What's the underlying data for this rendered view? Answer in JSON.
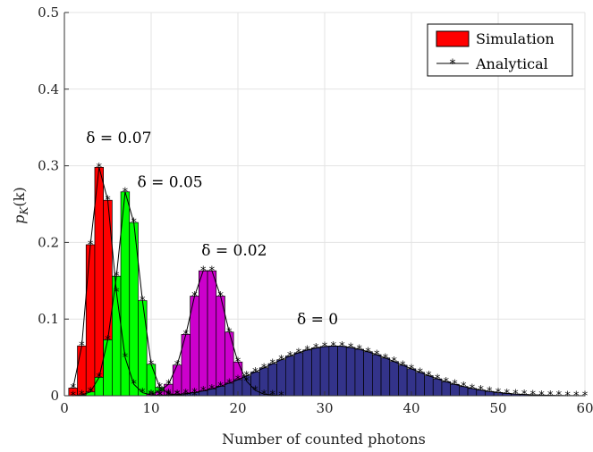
{
  "chart_data": {
    "type": "bar",
    "xlabel": "Number of counted photons",
    "ylabel_main": "p",
    "ylabel_sub": "K",
    "ylabel_arg": "(k)",
    "xlim": [
      0,
      60
    ],
    "ylim": [
      0,
      0.5
    ],
    "xticks": [
      0,
      10,
      20,
      30,
      40,
      50,
      60
    ],
    "yticks": [
      0,
      0.1,
      0.2,
      0.3,
      0.4,
      0.5
    ],
    "ytick_labels": [
      "0",
      "0.1",
      "0.2",
      "0.3",
      "0.4",
      "0.5"
    ],
    "grid": true,
    "legend_placement": "top-right",
    "legend": {
      "simulation": "Simulation",
      "analytical": "Analytical"
    },
    "series": [
      {
        "delta_label": "δ = 0.07",
        "color": "#ff0000",
        "x": [
          1,
          2,
          3,
          4,
          5,
          6,
          7,
          8,
          9,
          10,
          11,
          12
        ],
        "values": [
          0.01,
          0.065,
          0.197,
          0.298,
          0.255,
          0.135,
          0.05,
          0.015,
          0.004,
          0.001,
          0,
          0
        ]
      },
      {
        "delta_label": "δ = 0.05",
        "color": "#00ff00",
        "x": [
          1,
          2,
          3,
          4,
          5,
          6,
          7,
          8,
          9,
          10,
          11,
          12,
          13,
          14,
          15
        ],
        "values": [
          0,
          0.001,
          0.005,
          0.024,
          0.073,
          0.156,
          0.266,
          0.226,
          0.124,
          0.041,
          0.011,
          0.003,
          0.001,
          0,
          0
        ]
      },
      {
        "delta_label": "δ = 0.02",
        "color": "#cc00cc",
        "x": [
          10,
          11,
          12,
          13,
          14,
          15,
          16,
          17,
          18,
          19,
          20,
          21,
          22,
          23,
          24,
          25
        ],
        "values": [
          0.002,
          0.006,
          0.015,
          0.04,
          0.08,
          0.13,
          0.163,
          0.163,
          0.13,
          0.083,
          0.044,
          0.019,
          0.007,
          0.002,
          0.001,
          0
        ]
      },
      {
        "delta_label": "δ = 0",
        "color": "#33338a",
        "x": [
          10,
          11,
          12,
          13,
          14,
          15,
          16,
          17,
          18,
          19,
          20,
          21,
          22,
          23,
          24,
          25,
          26,
          27,
          28,
          29,
          30,
          31,
          32,
          33,
          34,
          35,
          36,
          37,
          38,
          39,
          40,
          41,
          42,
          43,
          44,
          45,
          46,
          47,
          48,
          49,
          50,
          51,
          52,
          53,
          54,
          55,
          56,
          57,
          58,
          59,
          60
        ],
        "values": [
          0,
          0.0005,
          0.0009,
          0.0016,
          0.0027,
          0.0042,
          0.0063,
          0.009,
          0.0124,
          0.0164,
          0.021,
          0.026,
          0.031,
          0.0364,
          0.0418,
          0.047,
          0.0518,
          0.0561,
          0.0597,
          0.0624,
          0.0642,
          0.0649,
          0.0645,
          0.063,
          0.0606,
          0.0574,
          0.0535,
          0.0492,
          0.0446,
          0.0398,
          0.0351,
          0.0305,
          0.0261,
          0.022,
          0.0183,
          0.0149,
          0.012,
          0.0095,
          0.0074,
          0.0056,
          0.0042,
          0.0031,
          0.0022,
          0.0016,
          0.0011,
          0.0008,
          0.0005,
          0.0003,
          0.0002,
          0.0001,
          0
        ]
      }
    ],
    "annotations": [
      {
        "text": "δ = 0.07",
        "x": 2.5,
        "y": 0.33
      },
      {
        "text": "δ = 0.05",
        "x": 8.4,
        "y": 0.272
      },
      {
        "text": "δ = 0.02",
        "x": 15.8,
        "y": 0.183
      },
      {
        "text": "δ = 0",
        "x": 26.8,
        "y": 0.093
      }
    ]
  }
}
